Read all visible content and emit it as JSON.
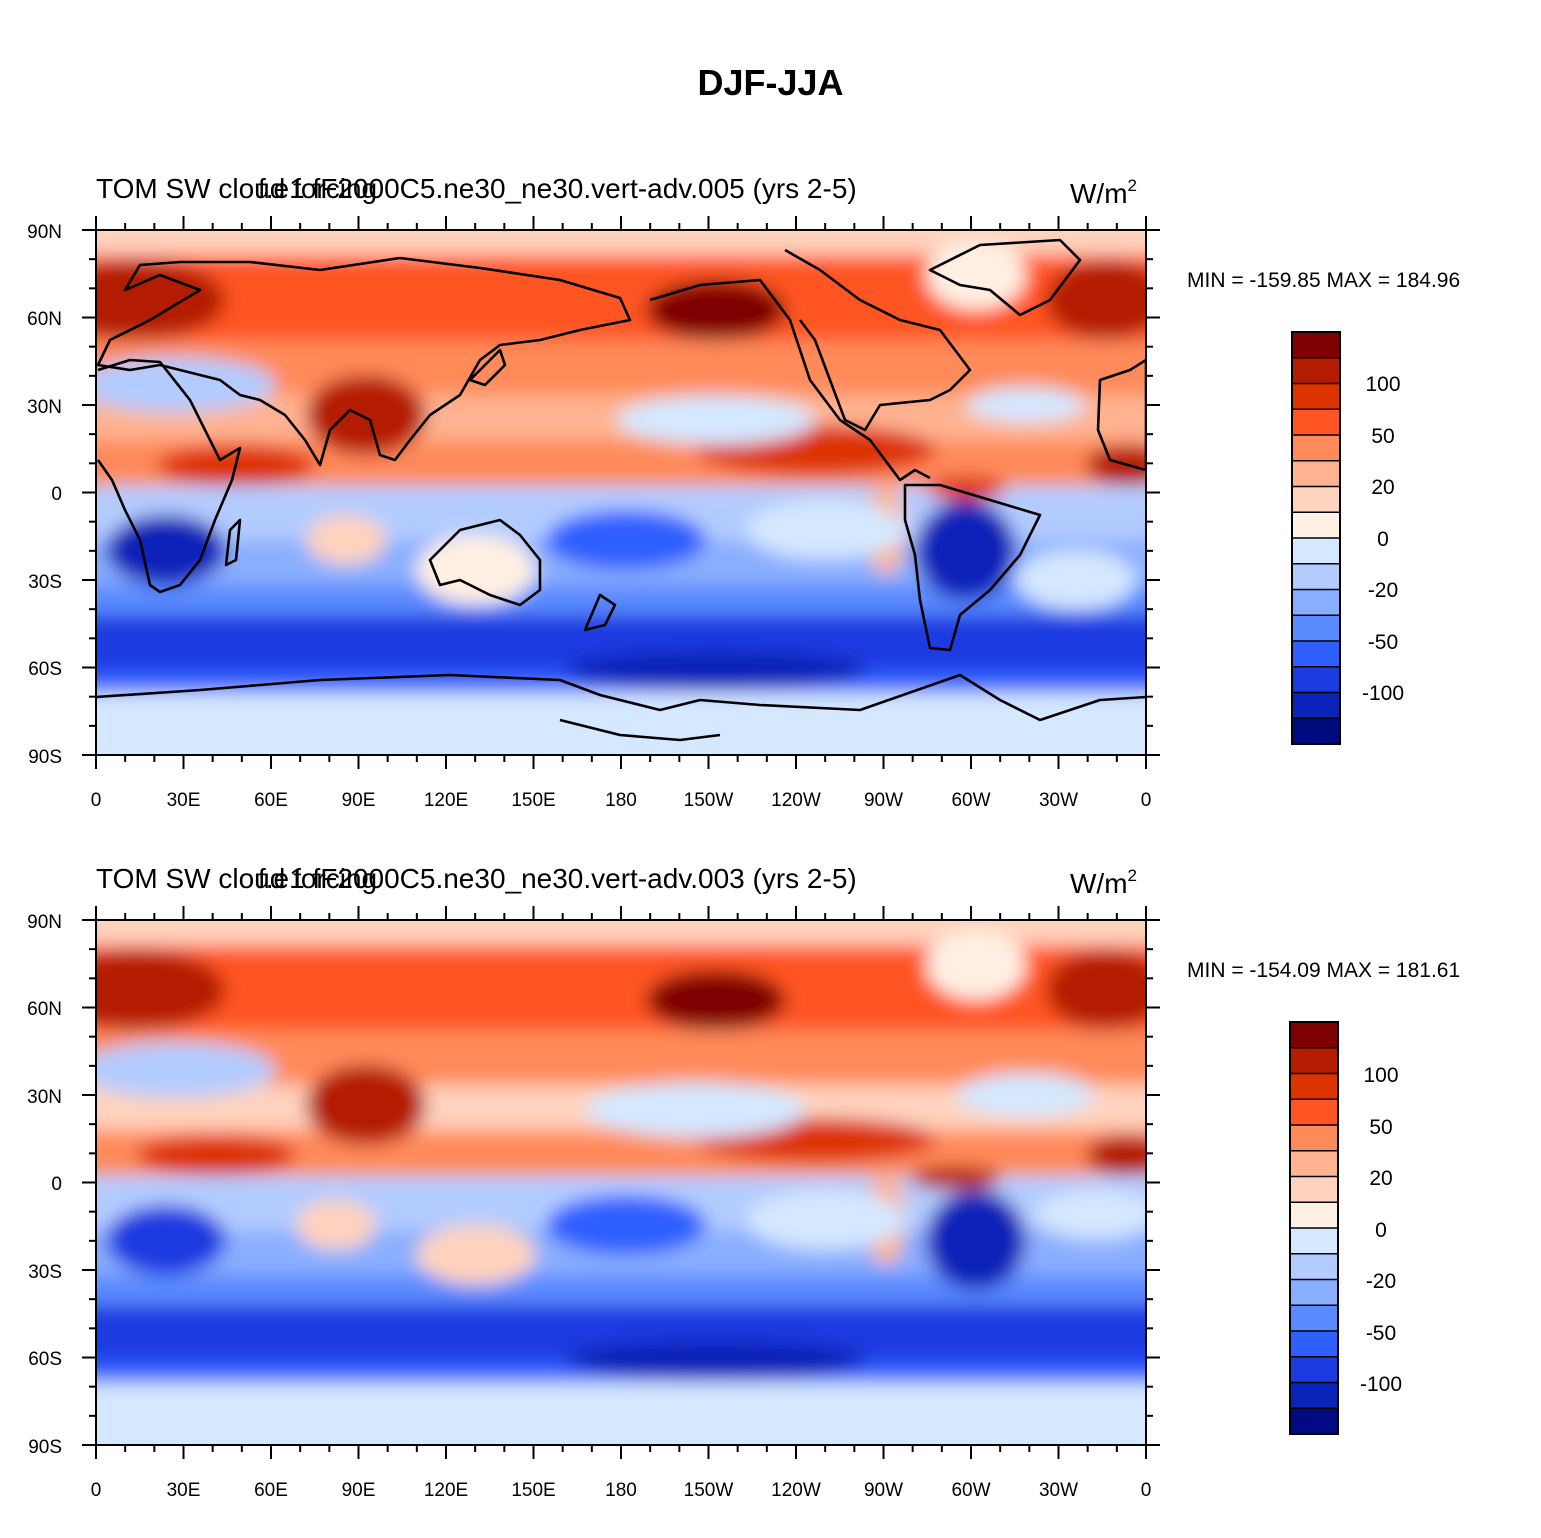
{
  "figure": {
    "title": "DJF-JJA"
  },
  "panels": [
    {
      "left_title": "TOM SW cloud forcing",
      "center_title": "f.e1 fF2000C5.ne30_ne30.vert-adv.005 (yrs 2-5)",
      "units_base": "W/m",
      "units_exp": "2",
      "stats": "MIN = -159.85 MAX = 184.96"
    },
    {
      "left_title": "TOM SW cloud forcing",
      "center_title": "f.e1 fF2000C5.ne30_ne30.vert-adv.003 (yrs 2-5)",
      "units_base": "W/m",
      "units_exp": "2",
      "stats": "MIN = -154.09 MAX = 181.61"
    }
  ],
  "axes": {
    "lat_labels": [
      "90N",
      "60N",
      "30N",
      "0",
      "30S",
      "60S",
      "90S"
    ],
    "lon_labels": [
      "0",
      "30E",
      "60E",
      "90E",
      "120E",
      "150E",
      "180",
      "150W",
      "120W",
      "90W",
      "60W",
      "30W",
      "0"
    ]
  },
  "colorbar": {
    "labels": [
      "100",
      "50",
      "20",
      "0",
      "-20",
      "-50",
      "-100"
    ],
    "colors": [
      "#7f0000",
      "#b41c00",
      "#dd3300",
      "#ff5522",
      "#ff8a5a",
      "#ffb391",
      "#ffd3bd",
      "#fff0e3",
      "#d4e8ff",
      "#b3ccff",
      "#8aaeff",
      "#5a8aff",
      "#2f5fff",
      "#1a3be0",
      "#0a23b8",
      "#000a80"
    ]
  },
  "chart_data": [
    {
      "type": "heatmap",
      "title": "TOM SW cloud forcing",
      "subtitle": "f.e1 fF2000C5.ne30_ne30.vert-adv.005 (yrs 2-5)",
      "units": "W/m2",
      "x": [
        "0",
        "30E",
        "60E",
        "90E",
        "120E",
        "150E",
        "180",
        "150W",
        "120W",
        "90W",
        "60W",
        "30W",
        "0"
      ],
      "y": [
        "90N",
        "60N",
        "30N",
        "0",
        "30S",
        "60S",
        "90S"
      ],
      "levels": [
        -100,
        -50,
        -20,
        0,
        20,
        50,
        100
      ],
      "min": -159.85,
      "max": 184.96
    },
    {
      "type": "heatmap",
      "title": "TOM SW cloud forcing",
      "subtitle": "f.e1 fF2000C5.ne30_ne30.vert-adv.003 (yrs 2-5)",
      "units": "W/m2",
      "x": [
        "0",
        "30E",
        "60E",
        "90E",
        "120E",
        "150E",
        "180",
        "150W",
        "120W",
        "90W",
        "60W",
        "30W",
        "0"
      ],
      "y": [
        "90N",
        "60N",
        "30N",
        "0",
        "30S",
        "60S",
        "90S"
      ],
      "levels": [
        -100,
        -50,
        -20,
        0,
        20,
        50,
        100
      ],
      "min": -154.09,
      "max": 181.61
    }
  ]
}
